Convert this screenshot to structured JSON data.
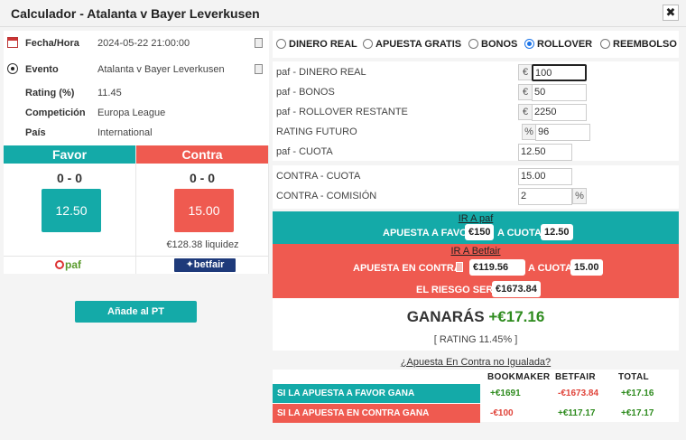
{
  "window": {
    "title": "Calculador - Atalanta v Bayer Leverkusen",
    "close": "✖"
  },
  "info": {
    "datetime": {
      "label": "Fecha/Hora",
      "value": "2024-05-22 21:00:00"
    },
    "event": {
      "label": "Evento",
      "value": "Atalanta v Bayer Leverkusen"
    },
    "rating": {
      "label": "Rating (%)",
      "value": "11.45"
    },
    "competition": {
      "label": "Competición",
      "value": "Europa League"
    },
    "country": {
      "label": "País",
      "value": "International"
    }
  },
  "favor": {
    "head": "Favor",
    "score": "0 - 0",
    "odds": "12.50",
    "logo": "paf"
  },
  "contra": {
    "head": "Contra",
    "score": "0 - 0",
    "odds": "15.00",
    "liquidity": "€128.38 liquidez",
    "logo": "betfair"
  },
  "add_button": "Añade al PT",
  "modes": [
    {
      "label": "DINERO REAL",
      "selected": false
    },
    {
      "label": "APUESTA GRATIS",
      "selected": false
    },
    {
      "label": "BONOS",
      "selected": false
    },
    {
      "label": "ROLLOVER",
      "selected": true
    },
    {
      "label": "REEMBOLSO",
      "selected": false
    }
  ],
  "form": {
    "real_money": {
      "label": "paf - DINERO REAL",
      "unit": "€",
      "value": "100"
    },
    "bonus": {
      "label": "paf - BONOS",
      "unit": "€",
      "value": "50"
    },
    "rollover": {
      "label": "paf - ROLLOVER RESTANTE",
      "unit": "€",
      "value": "2250"
    },
    "future_rating": {
      "label": "RATING FUTURO",
      "unit": "%",
      "value": "96"
    },
    "odds": {
      "label": "paf - CUOTA",
      "value": "12.50"
    },
    "lay_odds": {
      "label": "CONTRA - CUOTA",
      "value": "15.00"
    },
    "commission": {
      "label": "CONTRA - COMISIÓN",
      "value": "2",
      "unit": "%"
    }
  },
  "back_band": {
    "link": "IR A paf",
    "text1": "APUESTA A FAVOR",
    "stake": "€150",
    "text2": "A CUOTA",
    "odds": "12.50"
  },
  "lay_band": {
    "link": "IR A Betfair",
    "text1": "APUESTA EN CONTRA",
    "stake": "€119.56",
    "text2": "A CUOTA",
    "odds": "15.00",
    "risk_label": "EL RIESGO SERÁ",
    "risk": "€1673.84"
  },
  "win": {
    "label": "GANARÁS",
    "amount": "+€17.16",
    "rating": "[ RATING 11.45% ]"
  },
  "unmatched_link": "¿Apuesta En Contra no Igualada?",
  "results": {
    "headers": {
      "bookmaker": "BOOKMAKER",
      "betfair": "BETFAIR",
      "total": "TOTAL"
    },
    "rows": [
      {
        "label": "SI LA APUESTA A FAVOR GANA",
        "bookmaker": "+€1691",
        "betfair": "-€1673.84",
        "total": "+€17.16"
      },
      {
        "label": "SI LA APUESTA EN CONTRA GANA",
        "bookmaker": "-€100",
        "betfair": "+€117.17",
        "total": "+€17.17"
      }
    ]
  },
  "colors": {
    "teal": "#14aaa8",
    "red": "#ef5a50",
    "green": "#2e8b1e"
  }
}
